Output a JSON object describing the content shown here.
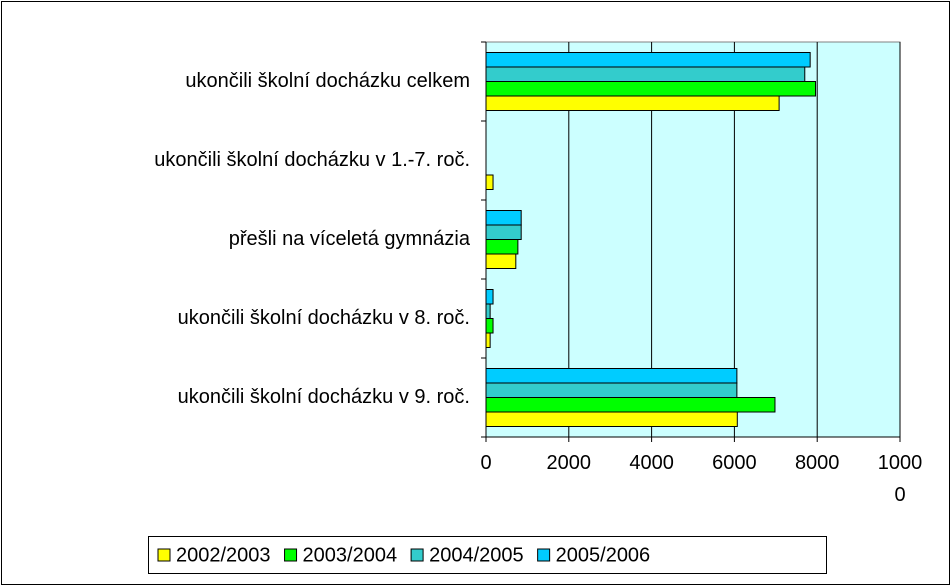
{
  "chart_data": {
    "type": "hbar",
    "categories": [
      "ukončili školní docházku v 9. roč.",
      "ukončili školní docházku v 8. roč.",
      "přešli na víceletá gymnázia",
      "ukončili školní docházku v 1.-7. roč.",
      "ukončili školní docházku celkem"
    ],
    "series": [
      {
        "name": "2002/2003",
        "color": "#ffff00",
        "values": [
          6070,
          100,
          720,
          170,
          7080
        ]
      },
      {
        "name": "2003/2004",
        "color": "#00ff00",
        "values": [
          6980,
          170,
          770,
          0,
          7960
        ]
      },
      {
        "name": "2004/2005",
        "color": "#33cccc",
        "values": [
          6060,
          100,
          850,
          0,
          7700
        ]
      },
      {
        "name": "2005/2006",
        "color": "#00ccff",
        "values": [
          6060,
          170,
          850,
          0,
          7830
        ]
      }
    ],
    "xlim": [
      0,
      10000
    ],
    "xticks": [
      0,
      2000,
      4000,
      6000,
      8000,
      10000
    ],
    "grid": true,
    "legend": "bottom",
    "plot_background": "#ccffff"
  }
}
